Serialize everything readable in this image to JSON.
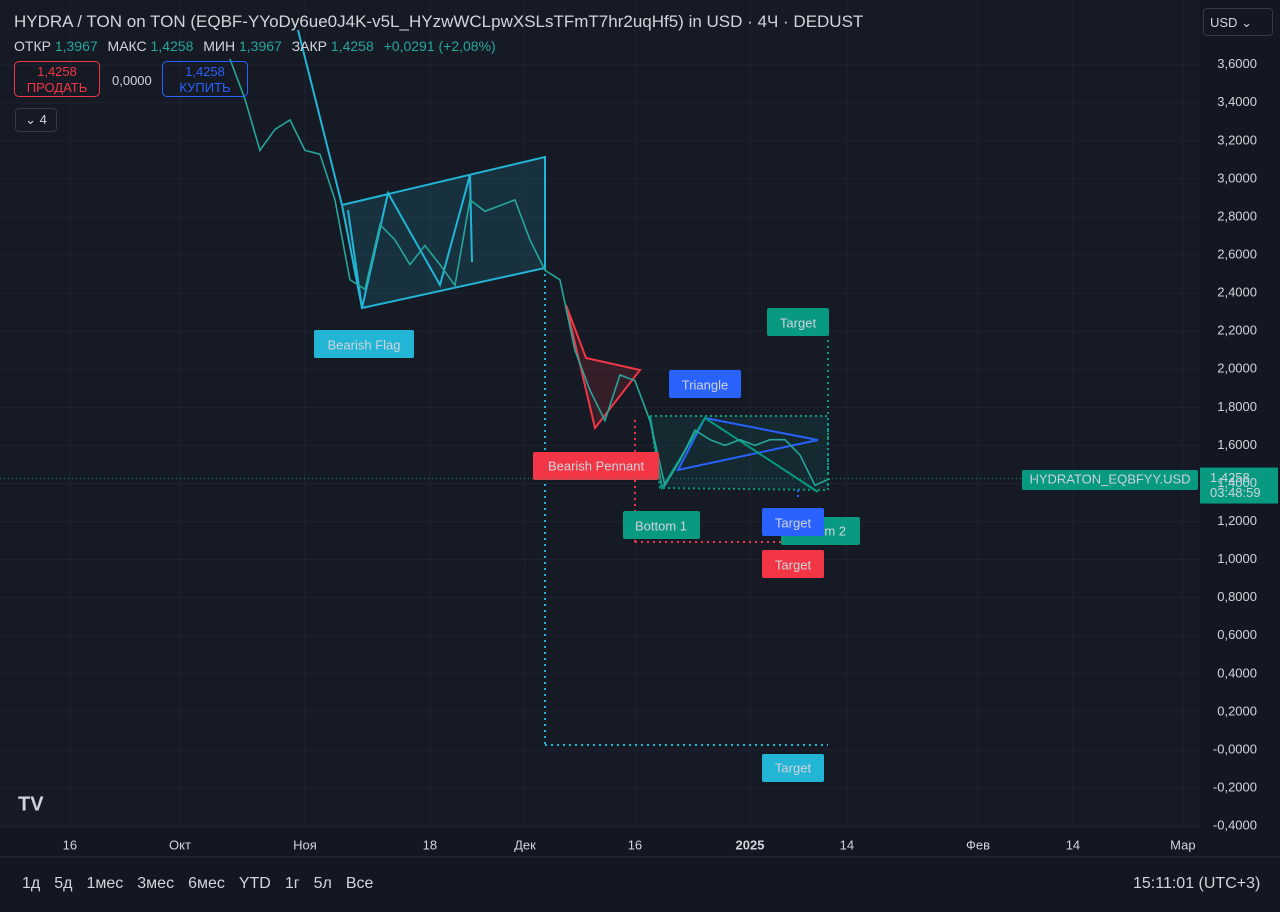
{
  "header": {
    "title": "HYDRA / TON on TON (EQBF-YYoDy6ue0J4K-v5L_HYzwWCLpwXSLsTFmT7hr2uqHf5) in USD · 4Ч · DEDUST",
    "ohlc": [
      {
        "label": "ОТКР",
        "value": "1,3967"
      },
      {
        "label": "МАКС",
        "value": "1,4258"
      },
      {
        "label": "МИН",
        "value": "1,3967"
      },
      {
        "label": "ЗАКР",
        "value": "1,4258"
      }
    ],
    "change": "+0,0291 (+2,08%)",
    "sell_price": "1,4258",
    "sell_label": "ПРОДАТЬ",
    "spread": "0,0000",
    "buy_price": "1,4258",
    "buy_label": "КУПИТЬ",
    "indicators_count": "4",
    "currency": "USD"
  },
  "chart_data": {
    "type": "line",
    "series": [
      {
        "name": "HYDRATON_EQBFYY.USD",
        "color": "#26a69a",
        "values": [
          3.63,
          3.42,
          3.15,
          3.26,
          3.31,
          3.15,
          3.13,
          2.89,
          2.47,
          2.42,
          2.76,
          2.68,
          2.55,
          2.65,
          2.55,
          2.44,
          2.89,
          2.83,
          2.86,
          2.89,
          2.68,
          2.52,
          2.47,
          2.1,
          1.89,
          1.73,
          1.97,
          1.94,
          1.73,
          1.39,
          1.52,
          1.68,
          1.63,
          1.6,
          1.63,
          1.6,
          1.63,
          1.63,
          1.55,
          1.39,
          1.4258
        ]
      }
    ],
    "last_price": {
      "value": 1.4258,
      "label": "1,4258",
      "countdown": "03:48:59",
      "color": "#089981"
    },
    "xlim": [
      -15.33,
      64.67
    ],
    "xticks": [
      {
        "value": -10.67,
        "label": "16"
      },
      {
        "value": -3.33,
        "label": "Окт"
      },
      {
        "value": 5,
        "label": "Ноя"
      },
      {
        "value": 13.33,
        "label": "18"
      },
      {
        "value": 19.67,
        "label": "Дек"
      },
      {
        "value": 27,
        "label": "16"
      },
      {
        "value": 34.67,
        "label": "2025"
      },
      {
        "value": 41.13,
        "label": "14"
      },
      {
        "value": 49.87,
        "label": "Фев"
      },
      {
        "value": 56.2,
        "label": "14"
      },
      {
        "value": 63.53,
        "label": "Мар"
      }
    ],
    "ylim": [
      -0.41,
      3.94
    ],
    "yticks": [
      {
        "value": 3.6,
        "label": "3,6000"
      },
      {
        "value": 3.4,
        "label": "3,4000"
      },
      {
        "value": 3.2,
        "label": "3,2000"
      },
      {
        "value": 3,
        "label": "3,0000"
      },
      {
        "value": 2.8,
        "label": "2,8000"
      },
      {
        "value": 2.6,
        "label": "2,6000"
      },
      {
        "value": 2.4,
        "label": "2,4000"
      },
      {
        "value": 2.2,
        "label": "2,2000"
      },
      {
        "value": 2,
        "label": "2,0000"
      },
      {
        "value": 1.8,
        "label": "1,8000"
      },
      {
        "value": 1.6,
        "label": "1,6000"
      },
      {
        "value": 1.4,
        "label": "1,4000"
      },
      {
        "value": 1.2,
        "label": "1,2000"
      },
      {
        "value": 1,
        "label": "1,0000"
      },
      {
        "value": 0.8,
        "label": "0,8000"
      },
      {
        "value": 0.6,
        "label": "0,6000"
      },
      {
        "value": 0.4,
        "label": "0,4000"
      },
      {
        "value": 0.2,
        "label": "0,2000"
      },
      {
        "value": 0,
        "label": "-0,0000"
      },
      {
        "value": -0.2,
        "label": "-0,2000"
      },
      {
        "value": -0.4,
        "label": "-0,4000"
      }
    ],
    "grid": true
  },
  "annotations": [
    "Bearish Flag",
    "Triangle",
    "Bearish Pennant",
    "Bottom 1",
    "Bottom 2",
    "Target",
    "Target",
    "Target",
    "Target"
  ],
  "toolbar": {
    "ranges": [
      "1д",
      "5д",
      "1мес",
      "3мес",
      "6мес",
      "YTD",
      "1г",
      "5л",
      "Все"
    ],
    "clock": "15:11:01 (UTC+3)"
  }
}
